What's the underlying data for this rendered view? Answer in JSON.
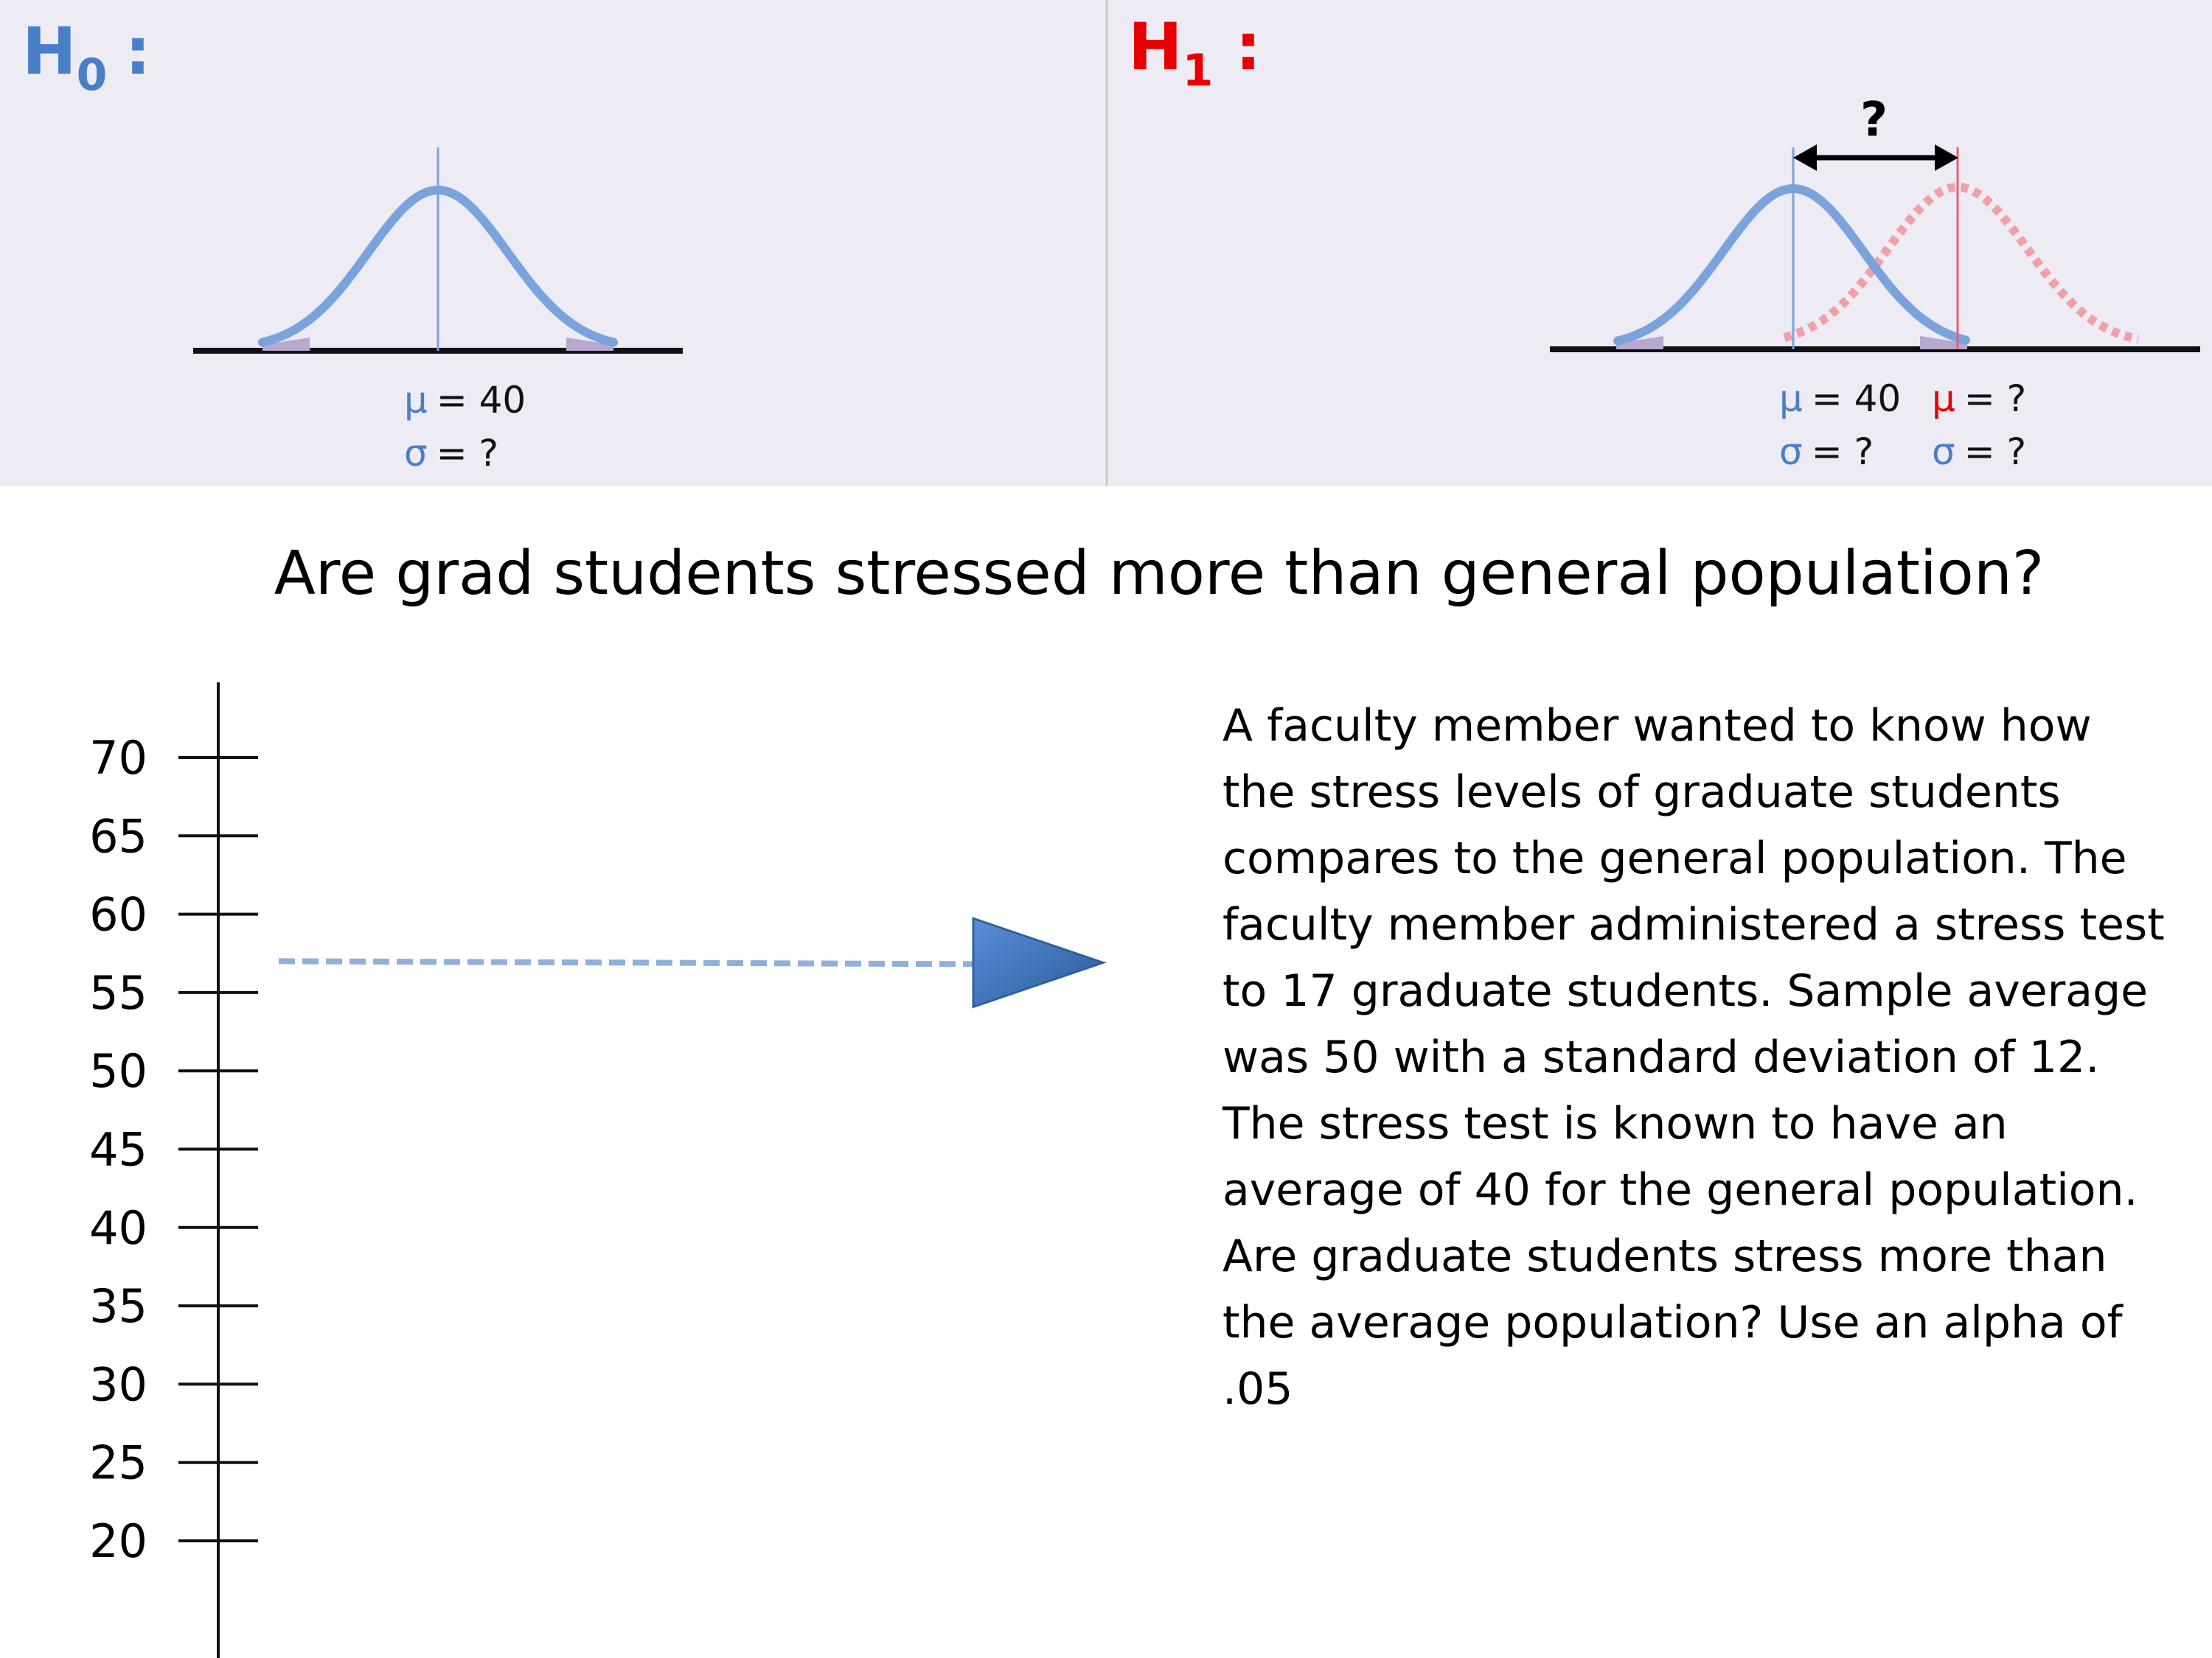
{
  "colors": {
    "panel_bg": "#edebf3",
    "h0_blue": "#4a7fc8",
    "h1_red": "#e60000",
    "curve_blue": "#7aa3dc",
    "curve_red": "#f0a0a8",
    "arrow_blue": "#3d6fb6"
  },
  "h0_panel": {
    "label_main": "H",
    "label_sub": "0",
    "label_colon": ":",
    "mu_symbol": "μ",
    "mu_value": "= 40",
    "sigma_symbol": "σ",
    "sigma_value": "= ?"
  },
  "h1_panel": {
    "label_main": "H",
    "label_sub": "1",
    "label_colon": ":",
    "question_mark": "?",
    "null_mu_symbol": "μ",
    "null_mu_value": "= 40",
    "null_sigma_symbol": "σ",
    "null_sigma_value": "= ?",
    "alt_mu_symbol": "μ",
    "alt_mu_value": "= ?",
    "alt_sigma_symbol": "σ",
    "alt_sigma_value": "= ?"
  },
  "question": "Are grad students stressed more than general population?",
  "scale": {
    "ticks": [
      "70",
      "65",
      "60",
      "55",
      "50",
      "45",
      "40",
      "35",
      "30",
      "25",
      "20"
    ],
    "pointer_value": 57
  },
  "problem_text": "A faculty member wanted to know how\nthe stress levels of graduate students\ncompares to the general population. The\nfaculty member administered a stress test\nto 17 graduate students. Sample average\nwas 50 with a standard deviation of 12.\nThe stress test is known to have an\naverage of 40 for the general population.\nAre graduate students stress more than\nthe average population?  Use an alpha of\n.05"
}
